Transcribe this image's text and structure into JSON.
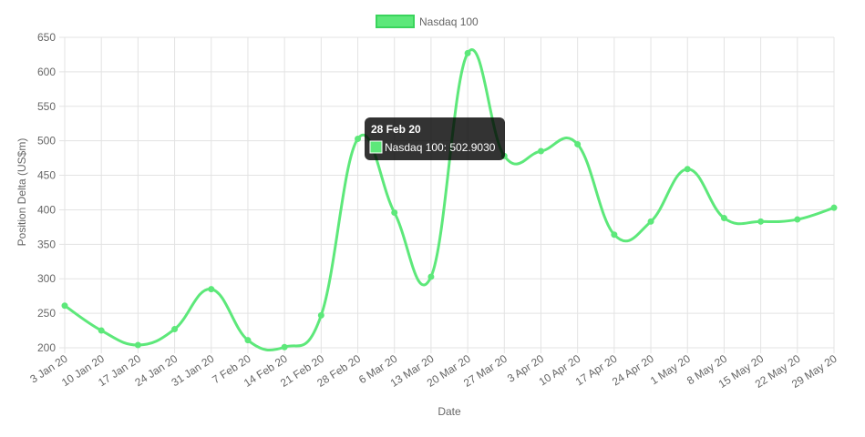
{
  "legend": {
    "label": "Nasdaq 100",
    "swatch_fill": "#5de87a",
    "swatch_stroke": "#3ad45c"
  },
  "chart_data": {
    "type": "line",
    "x": [
      "3 Jan 20",
      "10 Jan 20",
      "17 Jan 20",
      "24 Jan 20",
      "31 Jan 20",
      "7 Feb 20",
      "14 Feb 20",
      "21 Feb 20",
      "28 Feb 20",
      "6 Mar 20",
      "13 Mar 20",
      "20 Mar 20",
      "27 Mar 20",
      "3 Apr 20",
      "10 Apr 20",
      "17 Apr 20",
      "24 Apr 20",
      "1 May 20",
      "8 May 20",
      "15 May 20",
      "22 May 20",
      "29 May 20"
    ],
    "series": [
      {
        "name": "Nasdaq 100",
        "values": [
          261,
          225,
          204,
          227,
          285,
          211,
          201,
          247,
          502.903,
          396,
          303,
          627,
          478,
          485,
          495,
          364,
          383,
          459,
          388,
          383,
          386,
          403
        ],
        "color": "#5de87a"
      }
    ],
    "xlabel": "Date",
    "ylabel": "Position Delta (US$m)",
    "ylim": [
      200,
      650
    ],
    "yticks": [
      200,
      250,
      300,
      350,
      400,
      450,
      500,
      550,
      600,
      650
    ],
    "grid": true,
    "legend_position": "top-center"
  },
  "tooltip": {
    "title": "28 Feb 20",
    "body": "Nasdaq 100: 502.9030",
    "point_index": 8
  },
  "colors": {
    "line": "#5de87a",
    "grid": "#e3e3e3",
    "axis_text": "#666666",
    "tooltip_bg": "#000000"
  }
}
